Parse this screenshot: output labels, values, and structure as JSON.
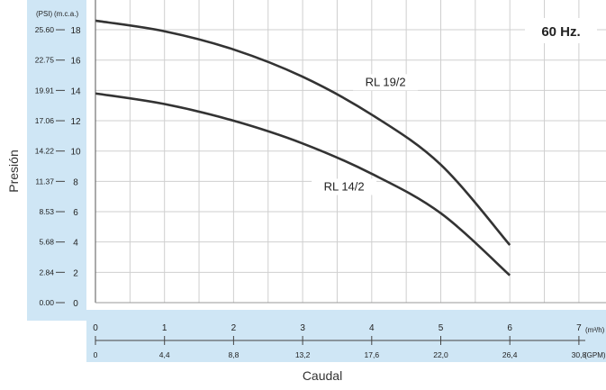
{
  "chart_data": {
    "type": "line",
    "frequency_label": "60 Hz.",
    "ylabel": "Presión",
    "xlabel": "Caudal",
    "y_unit_psi": "(PSI)",
    "y_unit_mca": "(m.c.a.)",
    "x_unit_m3h": "(m³/h)",
    "x_unit_gpm": "(GPM)",
    "ylim": [
      0,
      19
    ],
    "xlim": [
      0,
      7.5
    ],
    "y_ticks_mca": [
      "0",
      "2",
      "4",
      "6",
      "8",
      "10",
      "12",
      "14",
      "16",
      "18"
    ],
    "y_ticks_psi": [
      "0.00",
      "2.84",
      "5.68",
      "8.53",
      "11.37",
      "14.22",
      "17.06",
      "19.91",
      "22.75",
      "25.60"
    ],
    "x_ticks_m3h": [
      "0",
      "1",
      "2",
      "3",
      "4",
      "5",
      "6",
      "7"
    ],
    "x_ticks_gpm": [
      "0",
      "4,4",
      "8,8",
      "13,2",
      "17,6",
      "22,0",
      "26,4",
      "30,8"
    ],
    "series": [
      {
        "name": "RL 19/2",
        "x": [
          0,
          1,
          2,
          3,
          4,
          5,
          6
        ],
        "y": [
          18.6,
          17.9,
          16.7,
          14.9,
          12.4,
          9.1,
          3.8
        ]
      },
      {
        "name": "RL 14/2",
        "x": [
          0,
          1,
          2,
          3,
          4,
          5,
          6
        ],
        "y": [
          13.8,
          13.1,
          12.0,
          10.5,
          8.5,
          5.9,
          1.8
        ]
      }
    ],
    "grid": true,
    "legend": "inline labels"
  }
}
